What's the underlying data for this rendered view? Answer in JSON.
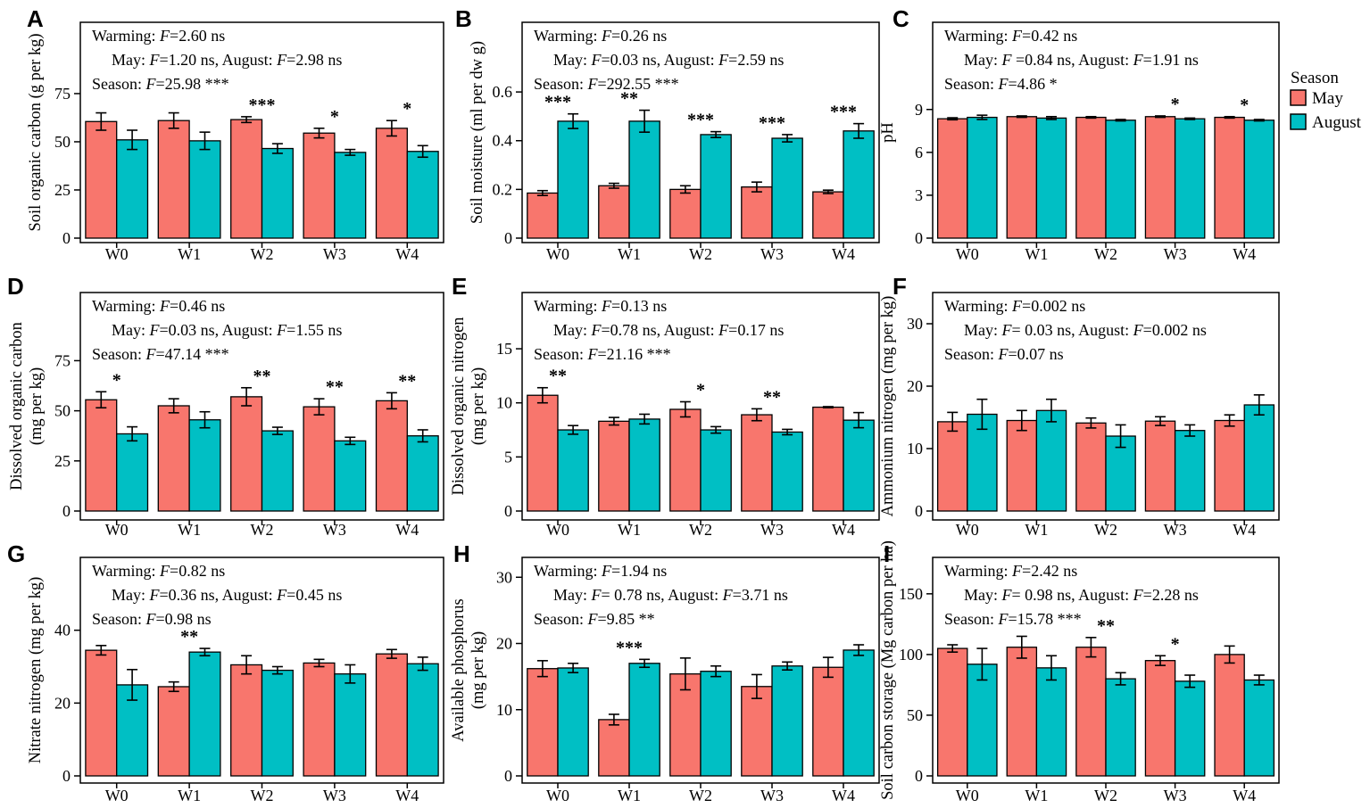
{
  "colors": {
    "may": "#F8766D",
    "august": "#00BFC4",
    "outline": "#000000",
    "text": "#000000"
  },
  "legend": {
    "title": "Season",
    "items": [
      {
        "label": "May",
        "color_key": "may"
      },
      {
        "label": "August",
        "color_key": "august"
      }
    ]
  },
  "chart_data": [
    {
      "panel": "A",
      "type": "bar",
      "ylabel_lines": [
        "Soil organic carbon  (g per kg)"
      ],
      "yticks": [
        0,
        25,
        50,
        75
      ],
      "ylim": [
        0,
        112
      ],
      "categories": [
        "W0",
        "W1",
        "W2",
        "W3",
        "W4"
      ],
      "series": [
        {
          "name": "May",
          "color_key": "may",
          "values": [
            60.5,
            61.0,
            61.5,
            54.5,
            57.0
          ],
          "errors": [
            4.5,
            4.0,
            1.5,
            2.5,
            4.0
          ]
        },
        {
          "name": "August",
          "color_key": "august",
          "values": [
            51.0,
            50.5,
            46.5,
            44.5,
            45.0
          ],
          "errors": [
            5.0,
            4.5,
            2.5,
            1.5,
            3.0
          ]
        }
      ],
      "sig": [
        "",
        "",
        "***",
        "*",
        "*"
      ],
      "stats": [
        "Warming: F=2.60 ns",
        "May: F=1.20 ns, August: F=2.98 ns",
        "Season: F=25.98 ***"
      ]
    },
    {
      "panel": "B",
      "type": "bar",
      "ylabel_lines": [
        "Soil moisture (ml per dw g)"
      ],
      "yticks": [
        0,
        0.2,
        0.4,
        0.6
      ],
      "ylim": [
        0,
        0.886
      ],
      "categories": [
        "W0",
        "W1",
        "W2",
        "W3",
        "W4"
      ],
      "series": [
        {
          "name": "May",
          "color_key": "may",
          "values": [
            0.185,
            0.215,
            0.2,
            0.21,
            0.19
          ],
          "errors": [
            0.01,
            0.01,
            0.015,
            0.02,
            0.007
          ]
        },
        {
          "name": "August",
          "color_key": "august",
          "values": [
            0.48,
            0.48,
            0.425,
            0.41,
            0.44
          ],
          "errors": [
            0.03,
            0.045,
            0.012,
            0.015,
            0.03
          ]
        }
      ],
      "sig": [
        "***",
        "**",
        "***",
        "***",
        "***"
      ],
      "stats": [
        "Warming: F=0.26 ns",
        "May: F=0.03 ns, August: F=2.59 ns",
        "Season: F=292.55 ***"
      ]
    },
    {
      "panel": "C",
      "type": "bar",
      "ylabel_lines": [
        "pH"
      ],
      "yticks": [
        0,
        3,
        6,
        9
      ],
      "ylim": [
        0,
        15.1
      ],
      "categories": [
        "W0",
        "W1",
        "W2",
        "W3",
        "W4"
      ],
      "series": [
        {
          "name": "May",
          "color_key": "may",
          "values": [
            8.35,
            8.5,
            8.45,
            8.5,
            8.45
          ],
          "errors": [
            0.07,
            0.05,
            0.05,
            0.05,
            0.05
          ]
        },
        {
          "name": "August",
          "color_key": "august",
          "values": [
            8.45,
            8.4,
            8.25,
            8.35,
            8.25
          ],
          "errors": [
            0.15,
            0.1,
            0.05,
            0.05,
            0.05
          ]
        }
      ],
      "sig": [
        "",
        "",
        "",
        "*",
        "*"
      ],
      "stats": [
        "Warming: F=0.42 ns",
        "May: F =0.84 ns, August: F=1.91 ns",
        "Season: F=4.86  *"
      ]
    },
    {
      "panel": "D",
      "type": "bar",
      "ylabel_lines": [
        "Dissolved organic carbon",
        "(mg per kg)"
      ],
      "yticks": [
        0,
        25,
        50,
        75
      ],
      "ylim": [
        0,
        109
      ],
      "categories": [
        "W0",
        "W1",
        "W2",
        "W3",
        "W4"
      ],
      "series": [
        {
          "name": "May",
          "color_key": "may",
          "values": [
            55.5,
            52.5,
            57.0,
            52.0,
            55.0
          ],
          "errors": [
            4.0,
            3.5,
            4.5,
            4.0,
            4.0
          ]
        },
        {
          "name": "August",
          "color_key": "august",
          "values": [
            38.5,
            45.5,
            40.0,
            35.0,
            37.5
          ],
          "errors": [
            3.5,
            4.0,
            1.8,
            1.8,
            3.0
          ]
        }
      ],
      "sig": [
        "*",
        "",
        "**",
        "**",
        "**"
      ],
      "stats": [
        "Warming: F=0.46 ns",
        "May: F=0.03 ns, August: F=1.55 ns",
        "Season: F=47.14 ***"
      ]
    },
    {
      "panel": "E",
      "type": "bar",
      "ylabel_lines": [
        "Dissolved organic nitrogen",
        "(mg per kg)"
      ],
      "yticks": [
        0,
        5,
        10,
        15
      ],
      "ylim": [
        0,
        20.2
      ],
      "categories": [
        "W0",
        "W1",
        "W2",
        "W3",
        "W4"
      ],
      "series": [
        {
          "name": "May",
          "color_key": "may",
          "values": [
            10.7,
            8.3,
            9.4,
            8.9,
            9.6
          ],
          "errors": [
            0.7,
            0.35,
            0.7,
            0.55,
            0.05
          ]
        },
        {
          "name": "August",
          "color_key": "august",
          "values": [
            7.5,
            8.5,
            7.5,
            7.3,
            8.4
          ],
          "errors": [
            0.4,
            0.45,
            0.3,
            0.25,
            0.7
          ]
        }
      ],
      "sig": [
        "**",
        "",
        "*",
        "**",
        ""
      ],
      "stats": [
        "Warming: F=0.13 ns",
        "May: F=0.78 ns, August: F=0.17 ns",
        "Season: F=21.16 ***"
      ]
    },
    {
      "panel": "F",
      "type": "bar",
      "ylabel_lines": [
        "Ammonium  nitrogen (mg per kg)"
      ],
      "yticks": [
        0,
        10,
        20,
        30
      ],
      "ylim": [
        0,
        35
      ],
      "categories": [
        "W0",
        "W1",
        "W2",
        "W3",
        "W4"
      ],
      "series": [
        {
          "name": "May",
          "color_key": "may",
          "values": [
            14.3,
            14.5,
            14.1,
            14.4,
            14.5
          ],
          "errors": [
            1.5,
            1.6,
            0.8,
            0.7,
            0.9
          ]
        },
        {
          "name": "August",
          "color_key": "august",
          "values": [
            15.5,
            16.1,
            12.0,
            12.9,
            17.0
          ],
          "errors": [
            2.4,
            1.8,
            1.8,
            0.9,
            1.6
          ]
        }
      ],
      "sig": [
        "",
        "",
        "",
        "",
        ""
      ],
      "stats": [
        "Warming: F=0.002 ns",
        "May: F= 0.03 ns, August: F=0.002 ns",
        "Season: F=0.07 ns"
      ]
    },
    {
      "panel": "G",
      "type": "bar",
      "ylabel_lines": [
        "Nitrate nitrogen (mg per kg)"
      ],
      "yticks": [
        0,
        20,
        40
      ],
      "ylim": [
        0,
        60
      ],
      "categories": [
        "W0",
        "W1",
        "W2",
        "W3",
        "W4"
      ],
      "series": [
        {
          "name": "May",
          "color_key": "may",
          "values": [
            34.5,
            24.5,
            30.5,
            31.0,
            33.5
          ],
          "errors": [
            1.3,
            1.3,
            2.5,
            1.0,
            1.2
          ]
        },
        {
          "name": "August",
          "color_key": "august",
          "values": [
            25.0,
            34.0,
            29.0,
            28.0,
            30.8
          ],
          "errors": [
            4.2,
            1.0,
            1.0,
            2.5,
            1.8
          ]
        }
      ],
      "sig": [
        "",
        "**",
        "",
        "",
        ""
      ],
      "stats": [
        "Warming: F=0.82 ns",
        "May: F=0.36 ns, August: F=0.45 ns",
        "Season: F=0.98 ns"
      ]
    },
    {
      "panel": "H",
      "type": "bar",
      "ylabel_lines": [
        "Available phosphorus",
        "(mg per kg)"
      ],
      "yticks": [
        0,
        10,
        20,
        30
      ],
      "ylim": [
        0,
        33
      ],
      "categories": [
        "W0",
        "W1",
        "W2",
        "W3",
        "W4"
      ],
      "series": [
        {
          "name": "May",
          "color_key": "may",
          "values": [
            16.2,
            8.5,
            15.4,
            13.5,
            16.4
          ],
          "errors": [
            1.2,
            0.8,
            2.4,
            1.8,
            1.5
          ]
        },
        {
          "name": "August",
          "color_key": "august",
          "values": [
            16.3,
            17.0,
            15.8,
            16.6,
            19.0
          ],
          "errors": [
            0.7,
            0.6,
            0.8,
            0.6,
            0.8
          ]
        }
      ],
      "sig": [
        "",
        "***",
        "",
        "",
        ""
      ],
      "stats": [
        "Warming: F=1.94 ns",
        "May: F= 0.78 ns, August: F=3.71 ns",
        "Season: F=9.85 **"
      ]
    },
    {
      "panel": "I",
      "type": "bar",
      "ylabel_lines": [
        "Soil carbon storage (Mg carbon per ha)"
      ],
      "yticks": [
        0,
        50,
        100,
        150
      ],
      "ylim": [
        0,
        180
      ],
      "categories": [
        "W0",
        "W1",
        "W2",
        "W3",
        "W4"
      ],
      "series": [
        {
          "name": "May",
          "color_key": "may",
          "values": [
            105,
            106,
            106,
            95,
            100
          ],
          "errors": [
            3,
            9,
            8,
            4,
            7
          ]
        },
        {
          "name": "August",
          "color_key": "august",
          "values": [
            92,
            89,
            80,
            78,
            79
          ],
          "errors": [
            13,
            10,
            5,
            5,
            4
          ]
        }
      ],
      "sig": [
        "",
        "",
        "**",
        "*",
        ""
      ],
      "stats": [
        "Warming: F=2.42 ns",
        "May: F= 0.98 ns, August: F=2.28 ns",
        "Season: F=15.78 ***"
      ]
    }
  ]
}
